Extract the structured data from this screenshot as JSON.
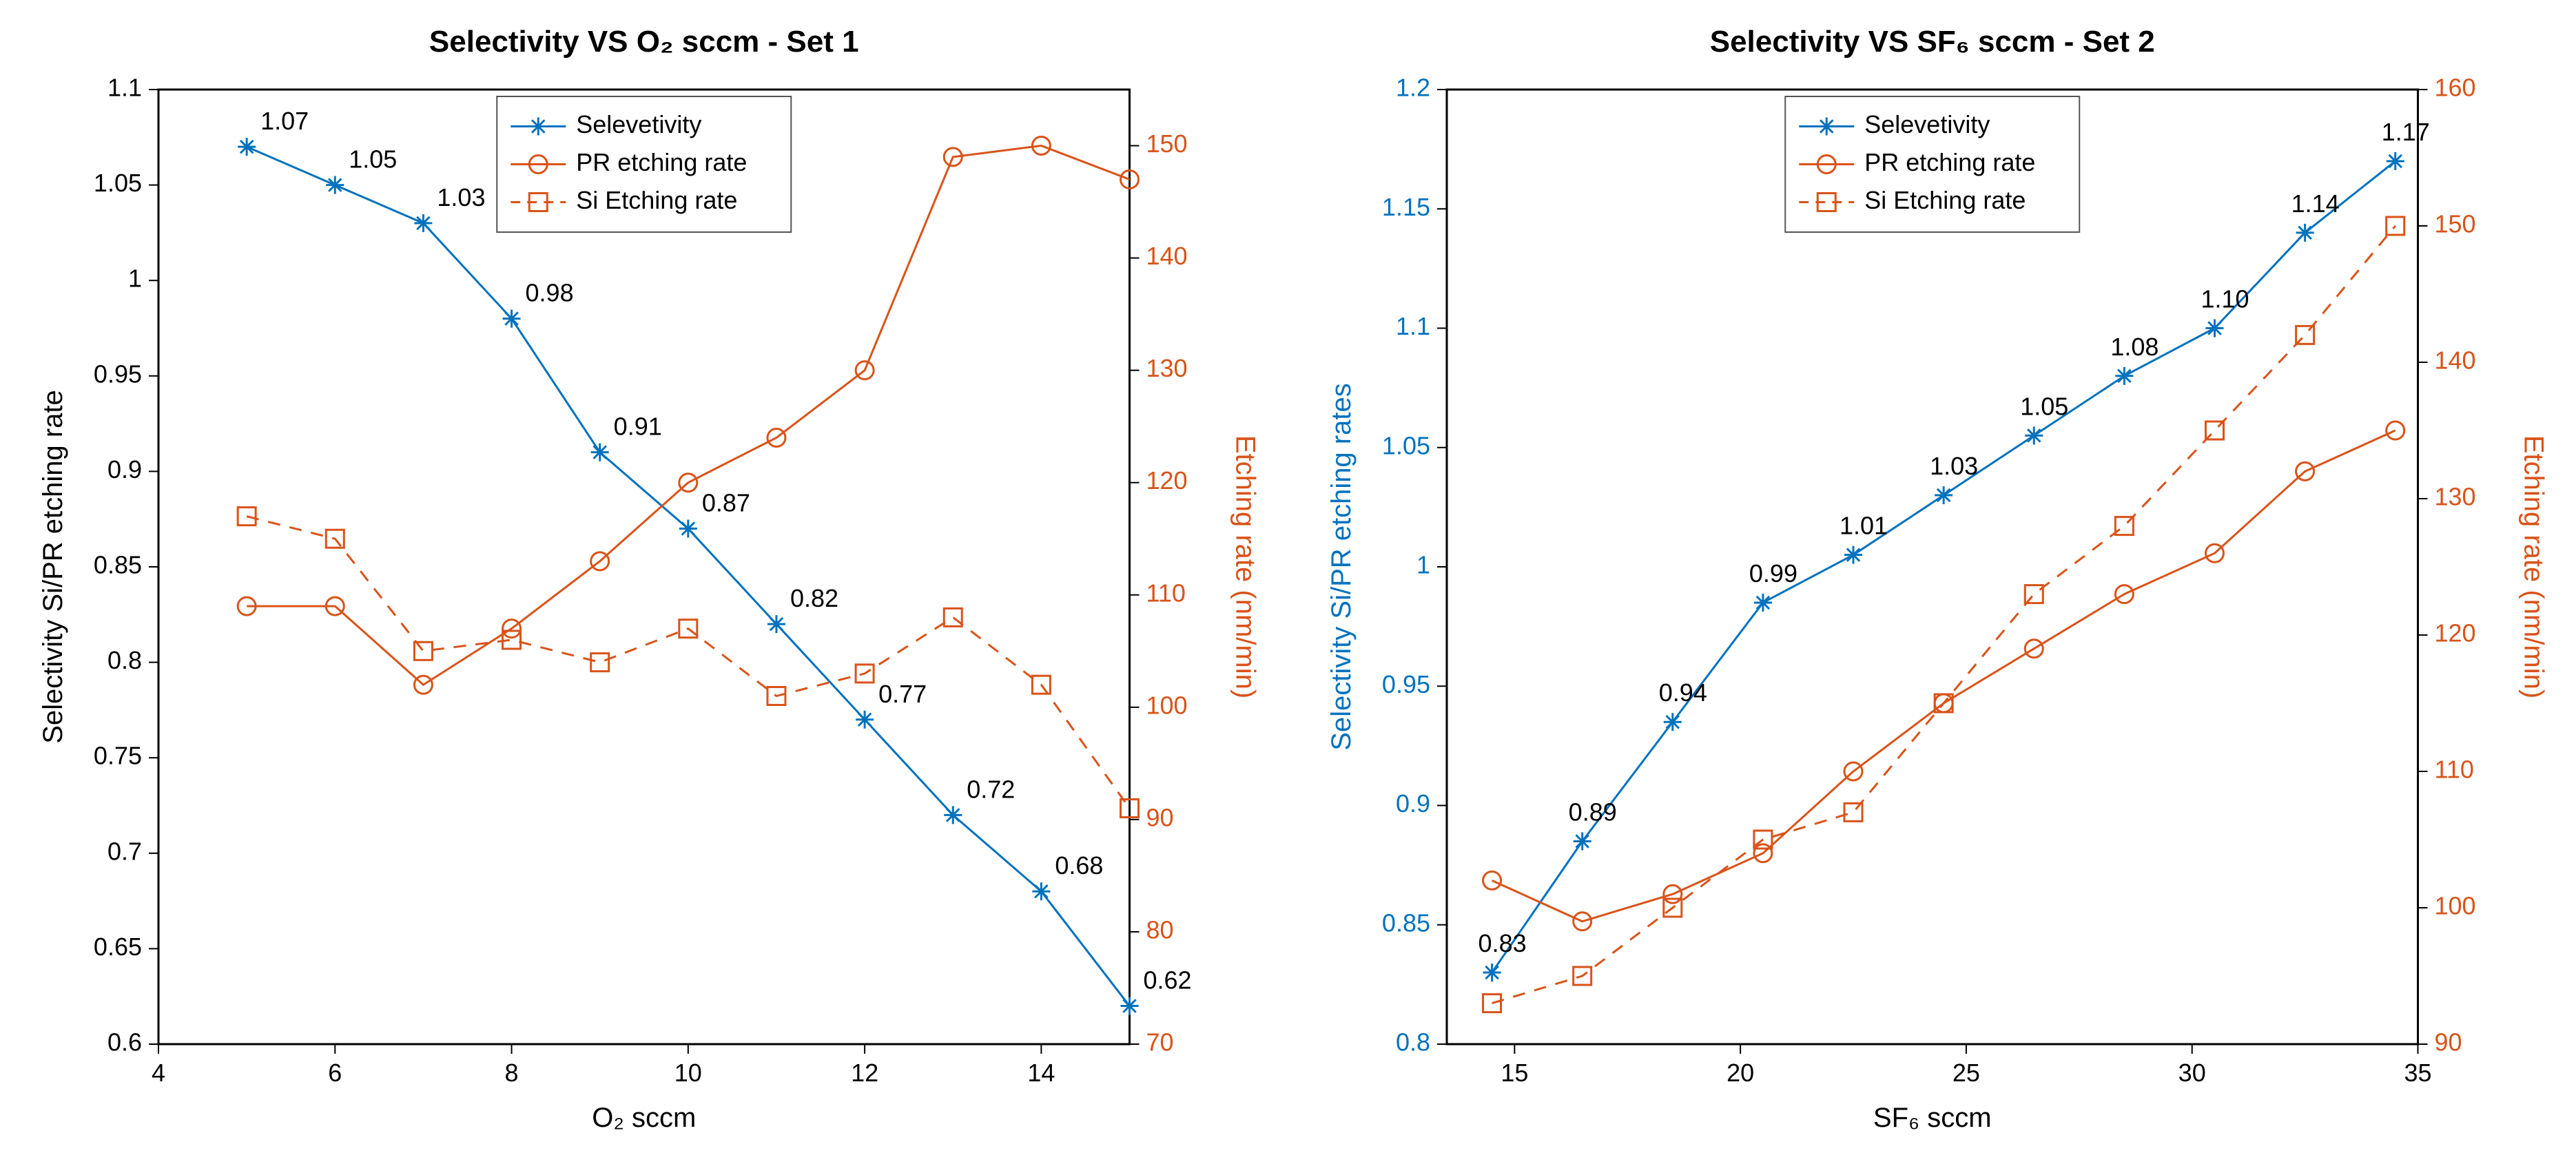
{
  "global": {
    "background_color": "#ffffff",
    "font_family": "Helvetica, Arial, sans-serif"
  },
  "colors": {
    "blue": "#0072bd",
    "orange": "#d95319",
    "black": "#000000",
    "axis": "#000000",
    "legend_border": "#555555"
  },
  "fontsizes": {
    "title": 44,
    "axis_label": 40,
    "tick": 36,
    "legend": 36,
    "point_label": 36
  },
  "line_widths": {
    "series": 3,
    "axis": 3,
    "legend_border": 2
  },
  "marker": {
    "size": 13,
    "stroke_width": 3
  },
  "charts": [
    {
      "id": "left",
      "title": "Selectivity VS O₂ sccm - Set 1",
      "xlabel": "O₂ sccm",
      "ylabel_left": "Selectivity Si/PR etching rate",
      "ylabel_right": "Etching rate (nm/min)",
      "left_label_color": "black",
      "right_label_color": "orange",
      "left_tick_color": "black",
      "right_tick_color": "orange",
      "xlim": [
        4,
        15
      ],
      "ylim_left": [
        0.6,
        1.1
      ],
      "ylim_right": [
        70,
        155
      ],
      "xticks": [
        4,
        6,
        8,
        10,
        12,
        14
      ],
      "yticks_left": [
        0.6,
        0.65,
        0.7,
        0.75,
        0.8,
        0.85,
        0.9,
        0.95,
        1,
        1.05,
        1.1
      ],
      "yticks_right": [
        70,
        80,
        90,
        100,
        110,
        120,
        130,
        140,
        150
      ],
      "x": [
        5,
        6,
        7,
        8,
        9,
        10,
        11,
        12,
        13,
        14,
        15
      ],
      "series": {
        "selectivity": {
          "label": "Selevetivity",
          "axis": "left",
          "color": "blue",
          "marker": "star",
          "dash": "solid",
          "y": [
            1.07,
            1.05,
            1.03,
            0.98,
            0.91,
            0.87,
            0.82,
            0.77,
            0.72,
            0.68,
            0.62
          ],
          "point_labels": [
            "1.07",
            "1.05",
            "1.03",
            "0.98",
            "0.91",
            "0.87",
            "0.82",
            "0.77",
            "0.72",
            "0.68",
            "0.62"
          ],
          "point_label_dx": 20,
          "point_label_dy": -25
        },
        "pr": {
          "label": "PR etching rate",
          "axis": "right",
          "color": "orange",
          "marker": "circle",
          "dash": "solid",
          "y": [
            109,
            109,
            102,
            107,
            113,
            120,
            124,
            130,
            149,
            150,
            147
          ]
        },
        "si": {
          "label": "Si Etching rate",
          "axis": "right",
          "color": "orange",
          "marker": "square",
          "dash": "dashed",
          "y": [
            117,
            115,
            105,
            106,
            104,
            107,
            101,
            103,
            108,
            102,
            91
          ]
        }
      },
      "legend_order": [
        "selectivity",
        "pr",
        "si"
      ]
    },
    {
      "id": "right",
      "title": "Selectivity VS SF₆ sccm - Set 2",
      "xlabel": "SF₆ sccm",
      "ylabel_left": "Selectivity Si/PR etching rates",
      "ylabel_right": "Etching rate (nm/min)",
      "left_label_color": "blue",
      "right_label_color": "orange",
      "left_tick_color": "blue",
      "right_tick_color": "orange",
      "xlim": [
        13.5,
        35
      ],
      "ylim_left": [
        0.8,
        1.2
      ],
      "ylim_right": [
        90,
        160
      ],
      "xticks": [
        15,
        20,
        25,
        30,
        35
      ],
      "yticks_left": [
        0.8,
        0.85,
        0.9,
        0.95,
        1,
        1.05,
        1.1,
        1.15,
        1.2
      ],
      "yticks_right": [
        90,
        100,
        110,
        120,
        130,
        140,
        150,
        160
      ],
      "x": [
        14.5,
        16.5,
        18.5,
        20.5,
        22.5,
        24.5,
        26.5,
        28.5,
        30.5,
        32.5,
        34.5
      ],
      "series": {
        "selectivity": {
          "label": "Selevetivity",
          "axis": "left",
          "color": "blue",
          "marker": "star",
          "dash": "solid",
          "y": [
            0.83,
            0.885,
            0.935,
            0.985,
            1.005,
            1.03,
            1.055,
            1.08,
            1.1,
            1.14,
            1.17
          ],
          "point_labels": [
            "0.83",
            "0.89",
            "0.94",
            "0.99",
            "1.01",
            "1.03",
            "1.05",
            "1.08",
            "1.10",
            "1.14",
            "1.17"
          ],
          "point_label_dx": -20,
          "point_label_dy": -30
        },
        "pr": {
          "label": "PR etching rate",
          "axis": "right",
          "color": "orange",
          "marker": "circle",
          "dash": "solid",
          "y": [
            102,
            99,
            101,
            104,
            110,
            115,
            119,
            123,
            126,
            132,
            135
          ]
        },
        "si": {
          "label": "Si Etching rate",
          "axis": "right",
          "color": "orange",
          "marker": "square",
          "dash": "dashed",
          "y": [
            93,
            95,
            100,
            105,
            107,
            115,
            123,
            128,
            135,
            142,
            150
          ]
        }
      },
      "legend_order": [
        "selectivity",
        "pr",
        "si"
      ]
    }
  ]
}
